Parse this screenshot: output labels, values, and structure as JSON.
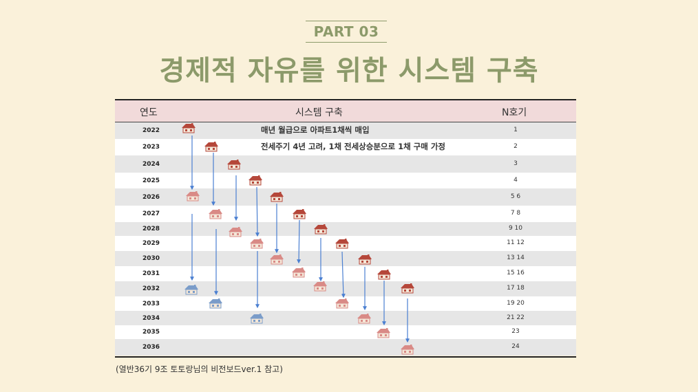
{
  "header": {
    "part": "PART 03",
    "title": "경제적 자유를 위한 시스템 구축"
  },
  "table": {
    "columns": [
      "연도",
      "시스템 구축",
      "N호기"
    ],
    "rows": [
      {
        "year": "2022",
        "n": "1"
      },
      {
        "year": "2023",
        "n": "2"
      },
      {
        "year": "2024",
        "n": "3"
      },
      {
        "year": "2025",
        "n": "4"
      },
      {
        "year": "2026",
        "n": "5 6"
      },
      {
        "year": "2027",
        "n": "7 8"
      },
      {
        "year": "2028",
        "n": "9 10"
      },
      {
        "year": "2029",
        "n": "11 12"
      },
      {
        "year": "2030",
        "n": "13 14"
      },
      {
        "year": "2031",
        "n": "15 16"
      },
      {
        "year": "2032",
        "n": "17 18"
      },
      {
        "year": "2033",
        "n": "19 20"
      },
      {
        "year": "2034",
        "n": "21 22"
      },
      {
        "year": "2035",
        "n": "23"
      },
      {
        "year": "2036",
        "n": "24"
      }
    ],
    "notes": [
      "매년 월급으로 아파트1채씩 매입",
      "전세주기 4년 고려, 1채 전세상승분으로 1채 구매 가정"
    ]
  },
  "icons": {
    "purchase": {
      "name": "red-house-icon",
      "color": "#b5473a"
    },
    "rollover": {
      "name": "pink-house-icon",
      "color": "#d98a86"
    },
    "final": {
      "name": "blue-house-icon",
      "color": "#7a9cc9"
    }
  },
  "colors": {
    "background": "#faf1da",
    "title": "#8c9a6a",
    "header_bg": "#f1dada",
    "arrow": "#4a7fd1"
  },
  "footer": {
    "source": "(열반36기 9조 토토랑님의 비전보드ver.1 참고)"
  }
}
